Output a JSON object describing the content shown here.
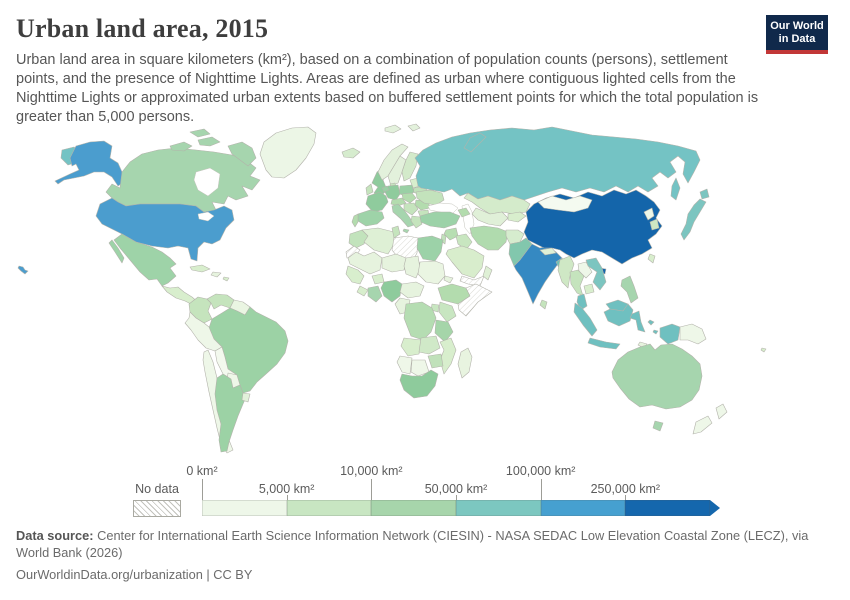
{
  "header": {
    "title": "Urban land area, 2015",
    "subtitle": "Urban land area in square kilometers (km²), based on a combination of population counts (persons), settlement points, and the presence of Nighttime Lights. Areas are defined as urban where contiguous lighted cells from the Nighttime Lights or approximated urban extents based on buffered settlement points for which the total population is greater than 5,000 persons.",
    "logo": {
      "line1": "Our World",
      "line2": "in Data",
      "bg": "#10294b",
      "accent": "#c23737"
    }
  },
  "legend": {
    "no_data_label": "No data",
    "bin_colors": [
      "#eef7e9",
      "#c8e6c2",
      "#a7d5ab",
      "#7cc7c0",
      "#46a0d0",
      "#1567ad"
    ],
    "ticks": [
      {
        "label": "0 km²",
        "row": "top",
        "position": 0
      },
      {
        "label": "5,000 km²",
        "row": "bottom",
        "position": 1
      },
      {
        "label": "10,000 km²",
        "row": "top",
        "position": 2
      },
      {
        "label": "50,000 km²",
        "row": "bottom",
        "position": 3
      },
      {
        "label": "100,000 km²",
        "row": "top",
        "position": 4
      },
      {
        "label": "250,000 km²",
        "row": "bottom",
        "position": 5
      }
    ]
  },
  "footer": {
    "datasource_label": "Data source:",
    "datasource_text": " Center for International Earth Science Information Network (CIESIN) - NASA SEDAC Low Elevation Coastal Zone (LECZ), via World Bank (2026)",
    "link_text": "OurWorldinData.org/urbanization | CC BY"
  },
  "map": {
    "countries": [
      {
        "id": "lake",
        "color": "#ffffff"
      },
      {
        "id": "chukotka",
        "color": "#74c3c4"
      },
      {
        "id": "alaska",
        "color": "#4b9dce"
      },
      {
        "id": "usa",
        "color": "#4b9dce"
      },
      {
        "id": "hawaii",
        "color": "#4b9dce"
      },
      {
        "id": "canada",
        "color": "#a6d5ae"
      },
      {
        "id": "greenland",
        "color": "#ecf6e6"
      },
      {
        "id": "mexico",
        "color": "#9ed3a8"
      },
      {
        "id": "central-america",
        "color": "#d8eecd"
      },
      {
        "id": "cuba",
        "color": "#d8eecd"
      },
      {
        "id": "hispaniola",
        "color": "#e6f3de"
      },
      {
        "id": "caribbean",
        "color": "#d8eecd"
      },
      {
        "id": "colombia",
        "color": "#c5e4bd"
      },
      {
        "id": "venezuela",
        "color": "#c5e4bd"
      },
      {
        "id": "guyanas",
        "color": "#eaf5e2"
      },
      {
        "id": "brazil",
        "color": "#9cd2a5"
      },
      {
        "id": "peru",
        "color": "#eef7e8"
      },
      {
        "id": "bolivia",
        "color": "#f3f9ee"
      },
      {
        "id": "paraguay",
        "color": "#eef7e8"
      },
      {
        "id": "chile",
        "color": "#eef7e8"
      },
      {
        "id": "argentina",
        "color": "#9cd2a5"
      },
      {
        "id": "uruguay",
        "color": "#e2f1da"
      },
      {
        "id": "iceland",
        "color": "#d6ecce"
      },
      {
        "id": "svalbard",
        "color": "#e3f1dc"
      },
      {
        "id": "uk",
        "color": "#8fcb9d"
      },
      {
        "id": "ireland",
        "color": "#c5e4bd"
      },
      {
        "id": "norway",
        "color": "#e3f1dc"
      },
      {
        "id": "sweden",
        "color": "#e3f1dc"
      },
      {
        "id": "finland",
        "color": "#d3eaca"
      },
      {
        "id": "denmark",
        "color": "#c5e4bd"
      },
      {
        "id": "baltics",
        "color": "#d8eecd"
      },
      {
        "id": "belarus",
        "color": "#c0e1ba"
      },
      {
        "id": "poland",
        "color": "#9ad0a5"
      },
      {
        "id": "germany",
        "color": "#8fcb9d"
      },
      {
        "id": "benelux",
        "color": "#9ad0a5"
      },
      {
        "id": "france",
        "color": "#8fcb9d"
      },
      {
        "id": "spain",
        "color": "#9ed3a8"
      },
      {
        "id": "portugal",
        "color": "#b3dcae"
      },
      {
        "id": "alpine",
        "color": "#b3dcae"
      },
      {
        "id": "czech-hungary",
        "color": "#b3dcae"
      },
      {
        "id": "italy",
        "color": "#a6d5ae"
      },
      {
        "id": "balkans",
        "color": "#c5e4bd"
      },
      {
        "id": "romania",
        "color": "#b3dcae"
      },
      {
        "id": "bulgaria",
        "color": "#c5e4bd"
      },
      {
        "id": "greece",
        "color": "#c5e4bd"
      },
      {
        "id": "ukraine",
        "color": "#c3e3bc"
      },
      {
        "id": "russia",
        "color": "#74c3c4"
      },
      {
        "id": "kazakhstan",
        "color": "#d4ebcb"
      },
      {
        "id": "central-asia",
        "color": "#e0f0d8"
      },
      {
        "id": "kyrgyz-tajik",
        "color": "#d8eecd"
      },
      {
        "id": "caucasus",
        "color": "#b3dcae"
      },
      {
        "id": "turkey",
        "color": "#9cd2a8"
      },
      {
        "id": "syria",
        "color": "#b7deb2"
      },
      {
        "id": "levant",
        "color": "#c0e1ba"
      },
      {
        "id": "iraq",
        "color": "#c8e6c0"
      },
      {
        "id": "iran",
        "color": "#b0dbae"
      },
      {
        "id": "afghanistan",
        "color": "#d6ecce"
      },
      {
        "id": "saudi",
        "color": "#d8edcc"
      },
      {
        "id": "yemen",
        "color": "#ffffff",
        "no_data": true
      },
      {
        "id": "oman",
        "color": "#dff0d6"
      },
      {
        "id": "pakistan",
        "color": "#82c7ad"
      },
      {
        "id": "india",
        "color": "#3589c2"
      },
      {
        "id": "sri-lanka",
        "color": "#c5e4bd"
      },
      {
        "id": "nepal",
        "color": "#dff0d6"
      },
      {
        "id": "bangladesh",
        "color": "#6fc0b4"
      },
      {
        "id": "china",
        "color": "#1465aa"
      },
      {
        "id": "mongolia",
        "color": "#f4faf0"
      },
      {
        "id": "north-korea",
        "color": "#eef7e8"
      },
      {
        "id": "south-korea",
        "color": "#cde7c3"
      },
      {
        "id": "japan",
        "color": "#7cc5c0"
      },
      {
        "id": "taiwan",
        "color": "#d8eecd"
      },
      {
        "id": "myanmar",
        "color": "#cfe8c5"
      },
      {
        "id": "thailand",
        "color": "#c5e4bd"
      },
      {
        "id": "laos",
        "color": "#eef7e8"
      },
      {
        "id": "vietnam",
        "color": "#7cc5c0"
      },
      {
        "id": "cambodia",
        "color": "#d8eecd"
      },
      {
        "id": "malaysia",
        "color": "#6fc0c0"
      },
      {
        "id": "philippines",
        "color": "#a6d5ae"
      },
      {
        "id": "indonesia",
        "color": "#6fc0c0"
      },
      {
        "id": "png",
        "color": "#eef7e8"
      },
      {
        "id": "timor",
        "color": "#e6f3de"
      },
      {
        "id": "australia",
        "color": "#a6d5ae"
      },
      {
        "id": "new-zealand",
        "color": "#eef7e8"
      },
      {
        "id": "fiji",
        "color": "#d8eecd"
      },
      {
        "id": "morocco",
        "color": "#c2e3bc"
      },
      {
        "id": "western-sahara",
        "color": "#ffffff",
        "no_data": true
      },
      {
        "id": "algeria",
        "color": "#def0d5"
      },
      {
        "id": "tunisia",
        "color": "#c5e4bd"
      },
      {
        "id": "libya",
        "color": "#ffffff",
        "no_data": true
      },
      {
        "id": "egypt",
        "color": "#9cd2a8"
      },
      {
        "id": "mauritania-mali",
        "color": "#e6f3de"
      },
      {
        "id": "niger",
        "color": "#e6f3de"
      },
      {
        "id": "chad",
        "color": "#e6f3de"
      },
      {
        "id": "sudan",
        "color": "#eaf5e2"
      },
      {
        "id": "eritrea",
        "color": "#e6f3de"
      },
      {
        "id": "senegal-guinea",
        "color": "#d8eecd"
      },
      {
        "id": "sierra-liberia",
        "color": "#d8eecd"
      },
      {
        "id": "ivory-ghana",
        "color": "#a6d5ae"
      },
      {
        "id": "burkina",
        "color": "#d8eecd"
      },
      {
        "id": "nigeria",
        "color": "#8ecb9c"
      },
      {
        "id": "cameroon-car",
        "color": "#e6f3de"
      },
      {
        "id": "gabon-congo",
        "color": "#e6f3de"
      },
      {
        "id": "ethiopia",
        "color": "#b3dcae"
      },
      {
        "id": "somalia",
        "color": "#ffffff",
        "no_data": true
      },
      {
        "id": "kenya",
        "color": "#c8e6c1"
      },
      {
        "id": "uganda",
        "color": "#c8e6c1"
      },
      {
        "id": "drc",
        "color": "#b5ddb2"
      },
      {
        "id": "tanzania",
        "color": "#a5d5a9"
      },
      {
        "id": "angola",
        "color": "#d8eecd"
      },
      {
        "id": "zambia",
        "color": "#d0e9c8"
      },
      {
        "id": "mozambique",
        "color": "#d8eecd"
      },
      {
        "id": "zimbabwe",
        "color": "#c0e1ba"
      },
      {
        "id": "namibia",
        "color": "#eef7e8"
      },
      {
        "id": "botswana",
        "color": "#eef7e8"
      },
      {
        "id": "south-africa",
        "color": "#8ecb9c"
      },
      {
        "id": "madagascar",
        "color": "#e8f4e0"
      }
    ]
  },
  "chart_data": {
    "type": "heatmap",
    "subtype": "world-choropleth",
    "title": "Urban land area, 2015",
    "unit": "km²",
    "legend_boundaries": [
      "0 km²",
      "5,000 km²",
      "10,000 km²",
      "50,000 km²",
      "100,000 km²",
      "250,000 km²"
    ],
    "bin_colors": [
      "#eef7e9",
      "#c8e6c2",
      "#a7d5ab",
      "#7cc7c0",
      "#46a0d0",
      "#1567ad"
    ],
    "countries_by_bin": {
      "over_250000_km2": [
        "China"
      ],
      "100000_to_250000_km2": [
        "United States",
        "India"
      ],
      "50000_to_100000_km2": [
        "Russia",
        "Japan",
        "Indonesia",
        "Malaysia",
        "Vietnam",
        "Pakistan",
        "Bangladesh"
      ],
      "10000_to_50000_km2": [
        "Canada",
        "Mexico",
        "Brazil",
        "Argentina",
        "Australia",
        "Germany",
        "France",
        "United Kingdom",
        "Poland",
        "Spain",
        "Italy",
        "Turkey",
        "Egypt",
        "Nigeria",
        "South Africa",
        "Tanzania",
        "Philippines",
        "South Korea"
      ],
      "5000_to_10000_km2": [
        "Colombia",
        "Venezuela",
        "Ukraine",
        "Thailand",
        "Myanmar",
        "Iran",
        "Iraq",
        "Saudi Arabia",
        "Kazakhstan",
        "Morocco",
        "Ethiopia",
        "DR Congo",
        "Kenya",
        "Zambia",
        "Sweden",
        "Finland",
        "Iceland"
      ],
      "0_to_5000_km2": [
        "Greenland",
        "Peru",
        "Bolivia",
        "Paraguay",
        "Chile",
        "Mongolia",
        "Laos",
        "North Korea",
        "Papua New Guinea",
        "New Zealand",
        "Norway",
        "Sudan",
        "Algeria",
        "Madagascar",
        "Namibia",
        "Botswana",
        "Afghanistan"
      ],
      "no_data": [
        "Libya",
        "Somalia",
        "Western Sahara",
        "Yemen"
      ]
    }
  }
}
